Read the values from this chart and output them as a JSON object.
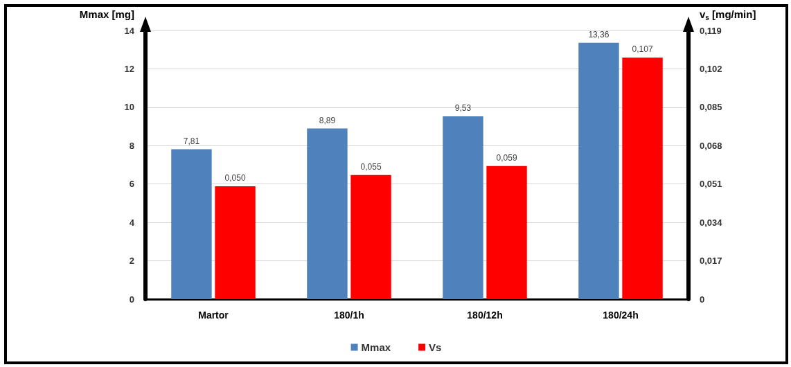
{
  "chart_data": {
    "type": "bar",
    "ylabel": "Mmax [mg]",
    "y2label": "v$_{s}$ [mg/min]",
    "categories": [
      "Martor",
      "180/1h",
      "180/12h",
      "180/24h"
    ],
    "series": [
      {
        "name": "Mmax",
        "color": "#4f81bd",
        "values": [
          7.81,
          8.89,
          9.53,
          13.36
        ],
        "value_labels": [
          "7,81",
          "8,89",
          "9,53",
          "13,36"
        ]
      },
      {
        "name": "Vs",
        "color": "#ff0000",
        "axis": "y2",
        "values": [
          0.05,
          0.055,
          0.059,
          0.107
        ],
        "value_labels": [
          "0,050",
          "0,055",
          "0,059",
          "0,107"
        ]
      }
    ],
    "ylim": [
      0,
      14
    ],
    "yticks": [
      0,
      2,
      4,
      6,
      8,
      10,
      12,
      14
    ],
    "y2lim": [
      0,
      0.119
    ],
    "y2ticks": [
      0,
      {
        "value": 0.017,
        "label": "0,017"
      },
      {
        "value": 0.034,
        "label": "0,034"
      },
      {
        "value": 0.051,
        "label": "0,051"
      },
      {
        "value": 0.068,
        "label": "0,068"
      },
      {
        "value": 0.085,
        "label": "0,085"
      },
      {
        "value": 0.102,
        "label": "0,102"
      },
      {
        "value": 0.119,
        "label": "0,119"
      }
    ],
    "grid": "y",
    "legend": "bottom"
  }
}
